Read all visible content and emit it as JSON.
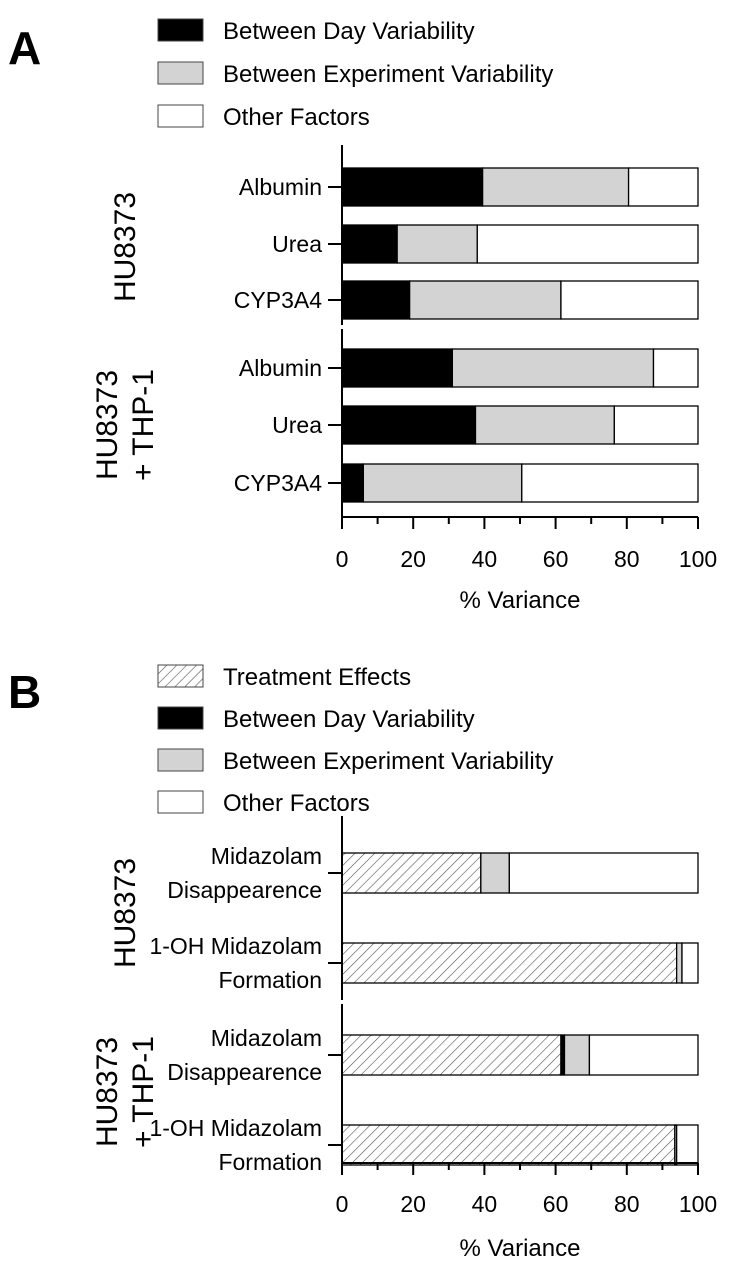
{
  "colors": {
    "between_day": "#000000",
    "between_experiment": "#d3d3d3",
    "other": "#ffffff",
    "treatment": "hatched"
  },
  "chart_data": [
    {
      "panel": "A",
      "type": "bar",
      "orientation": "horizontal",
      "stacked": true,
      "legend": [
        "Between Day Variability",
        "Between Experiment Variability",
        "Other Factors"
      ],
      "groups": [
        {
          "name": "HU8373",
          "rows": [
            {
              "label": [
                "Albumin"
              ],
              "values": [
                39.5,
                41,
                19.5
              ]
            },
            {
              "label": [
                "Urea"
              ],
              "values": [
                15.5,
                22.5,
                62
              ]
            },
            {
              "label": [
                "CYP3A4"
              ],
              "values": [
                19,
                42.5,
                38.5
              ]
            }
          ]
        },
        {
          "name": "HU8373\n+ THP-1",
          "rows": [
            {
              "label": [
                "Albumin"
              ],
              "values": [
                31,
                56.5,
                12.5
              ]
            },
            {
              "label": [
                "Urea"
              ],
              "values": [
                37.5,
                39,
                23.5
              ]
            },
            {
              "label": [
                "CYP3A4"
              ],
              "values": [
                6,
                44.5,
                49.5
              ]
            }
          ]
        }
      ],
      "xlabel": "% Variance",
      "xlim": [
        0,
        100
      ],
      "xticks": [
        0,
        20,
        40,
        60,
        80,
        100
      ]
    },
    {
      "panel": "B",
      "type": "bar",
      "orientation": "horizontal",
      "stacked": true,
      "legend": [
        "Treatment Effects",
        "Between Day Variability",
        "Between Experiment Variability",
        "Other Factors"
      ],
      "groups": [
        {
          "name": "HU8373",
          "rows": [
            {
              "label": [
                "Midazolam",
                "Disappearence"
              ],
              "values": [
                39,
                0,
                8,
                53
              ]
            },
            {
              "label": [
                "1-OH Midazolam",
                "Formation"
              ],
              "values": [
                94,
                0,
                1.5,
                4.5
              ]
            }
          ]
        },
        {
          "name": "HU8373\n+ THP-1",
          "rows": [
            {
              "label": [
                "Midazolam",
                "Disappearence"
              ],
              "values": [
                61.5,
                1,
                7,
                30.5
              ]
            },
            {
              "label": [
                "1-OH Midazolam",
                "Formation"
              ],
              "values": [
                93.5,
                0,
                0.5,
                6
              ]
            }
          ]
        }
      ],
      "xlabel": "% Variance",
      "xlim": [
        0,
        100
      ],
      "xticks": [
        0,
        20,
        40,
        60,
        80,
        100
      ]
    }
  ]
}
